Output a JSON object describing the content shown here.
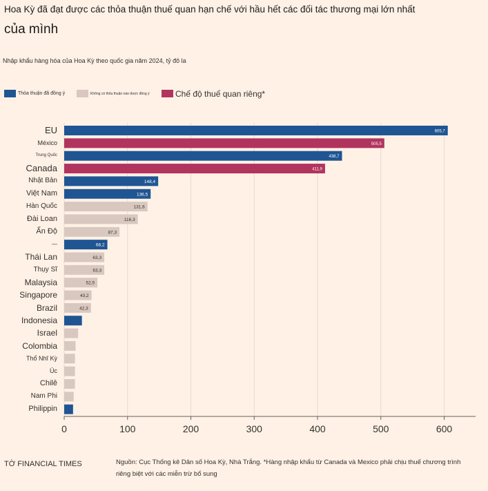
{
  "header": {
    "title": "Hoa Kỳ đã đạt được các thỏa thuận thuế quan hạn chế với hầu hết các đối tác thương mại lớn nhất",
    "title_line2": "của mình",
    "subtitle": "Nhập khẩu hàng hóa của Hoa Kỳ theo quốc gia năm 2024, tỷ đô la"
  },
  "legend": [
    {
      "label": "Thỏa thuận đã đồng ý",
      "color": "#1f5592"
    },
    {
      "label": "Không có thỏa thuận nào được đồng ý",
      "color": "#d9c8bf"
    },
    {
      "label": "Chế độ thuế quan riêng*",
      "color": "#b0345d"
    }
  ],
  "chart_data": {
    "type": "bar",
    "orientation": "horizontal",
    "categories": [
      "EU",
      "México",
      "Trung Quốc",
      "Canada",
      "Nhật Bản",
      "Việt Nam",
      "Hàn Quốc",
      "Đài Loan",
      "Ấn Độ",
      "—",
      "Thái Lan",
      "Thụy Sĩ",
      "Malaysia",
      "Singapore",
      "Brazil",
      "Indonesia",
      "Israel",
      "Colombia",
      "Thổ Nhĩ Kỳ",
      "Úc",
      "Chilê",
      "Nam Phi",
      "Philippin"
    ],
    "values": [
      605.7,
      505.5,
      438.7,
      411.9,
      148.4,
      136.5,
      131.6,
      116.3,
      87.3,
      68.2,
      63.3,
      63.3,
      52.5,
      43.2,
      42.3,
      28,
      22,
      18,
      17,
      17,
      17,
      15,
      14
    ],
    "value_labels": [
      "605,7",
      "505,5",
      "438,7",
      "411,9",
      "148,4",
      "136,5",
      "131,6",
      "116,3",
      "87,3",
      "68,2",
      "63,3",
      "63,3",
      "52,5",
      "43,2",
      "42,3",
      "",
      "",
      "",
      "",
      "",
      "",
      "",
      ""
    ],
    "groups": [
      "agreed",
      "separate",
      "agreed",
      "separate",
      "agreed",
      "agreed",
      "none",
      "none",
      "none",
      "agreed",
      "none",
      "none",
      "none",
      "none",
      "none",
      "agreed",
      "none",
      "none",
      "none",
      "none",
      "none",
      "none",
      "agreed"
    ],
    "colors": {
      "agreed": "#1f5592",
      "none": "#d9c8bf",
      "separate": "#b0345d"
    },
    "xlim": [
      0,
      650
    ],
    "xticks": [
      0,
      100,
      200,
      300,
      400,
      500,
      600
    ],
    "grid": true,
    "legend_position": "top-left"
  },
  "footer": {
    "source_left": "TỜ FINANCIAL TIMES",
    "source_right": "Nguồn: Cục Thống kê Dân số Hoa Kỳ, Nhà Trắng. *Hàng nhập khẩu từ Canada và Mexico phải chịu thuế chương trình riêng biệt với các miễn trừ bổ sung"
  }
}
